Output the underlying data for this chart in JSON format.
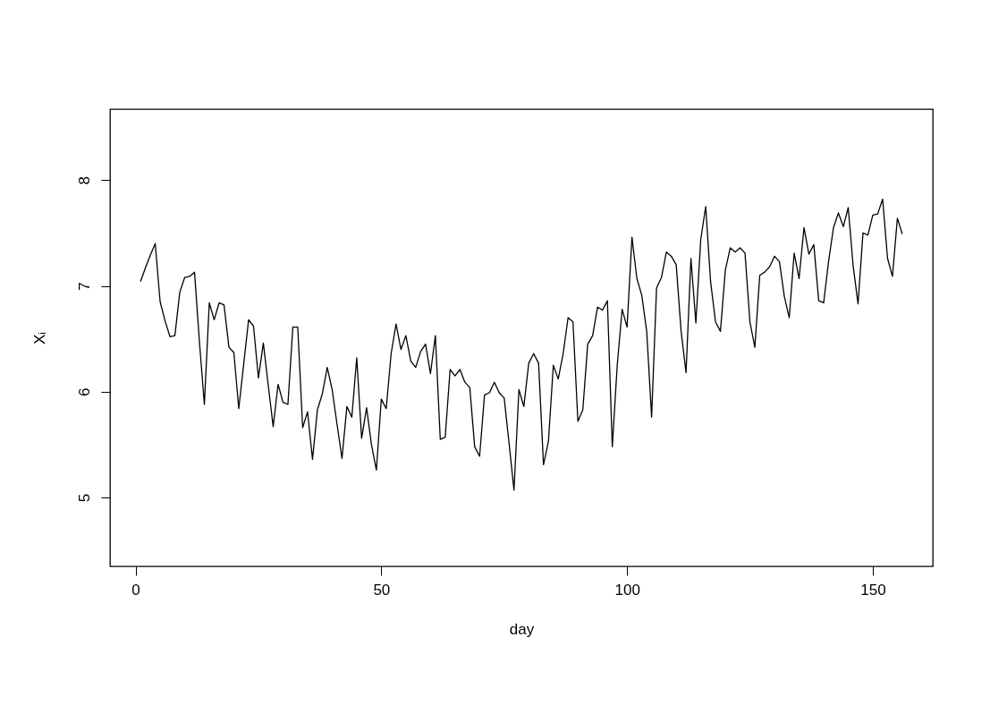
{
  "chart_data": {
    "type": "line",
    "xlabel": "day",
    "ylabel": "Xᵢ",
    "xlim": [
      -5.2,
      162.2
    ],
    "xticks": [
      0,
      50,
      100,
      150
    ],
    "ylim": [
      4.35,
      8.67
    ],
    "yticks": [
      5,
      6,
      7,
      8
    ],
    "grid": false,
    "x": [
      1,
      2,
      3,
      4,
      5,
      6,
      7,
      8,
      9,
      10,
      11,
      12,
      13,
      14,
      15,
      16,
      17,
      18,
      19,
      20,
      21,
      22,
      23,
      24,
      25,
      26,
      27,
      28,
      29,
      30,
      31,
      32,
      33,
      34,
      35,
      36,
      37,
      38,
      39,
      40,
      41,
      42,
      43,
      44,
      45,
      46,
      47,
      48,
      49,
      50,
      51,
      52,
      53,
      54,
      55,
      56,
      57,
      58,
      59,
      60,
      61,
      62,
      63,
      64,
      65,
      66,
      67,
      68,
      69,
      70,
      71,
      72,
      73,
      74,
      75,
      76,
      77,
      78,
      79,
      80,
      81,
      82,
      83,
      84,
      85,
      86,
      87,
      88,
      89,
      90,
      91,
      92,
      93,
      94,
      95,
      96,
      97,
      98,
      99,
      100,
      101,
      102,
      103,
      104,
      105,
      106,
      107,
      108,
      109,
      110,
      111,
      112,
      113,
      114,
      115,
      116,
      117,
      118,
      119,
      120,
      121,
      122,
      123,
      124,
      125,
      126,
      127,
      128,
      129,
      130,
      131,
      132,
      133,
      134,
      135,
      136,
      137,
      138,
      139,
      140,
      141,
      142,
      143,
      144,
      145,
      146,
      147,
      148,
      149,
      150,
      151,
      152,
      153,
      154,
      155,
      156
    ],
    "series": [
      {
        "color": "#000000",
        "values": [
          7.04,
          7.17,
          7.29,
          7.4,
          6.85,
          6.67,
          6.52,
          6.53,
          6.94,
          7.08,
          7.09,
          7.13,
          6.47,
          5.88,
          6.84,
          6.68,
          6.84,
          6.82,
          6.42,
          6.37,
          5.84,
          6.26,
          6.68,
          6.62,
          6.13,
          6.46,
          6.06,
          5.67,
          6.07,
          5.9,
          5.88,
          6.61,
          6.61,
          5.66,
          5.81,
          5.36,
          5.83,
          5.98,
          6.23,
          6.02,
          5.69,
          5.37,
          5.86,
          5.76,
          6.32,
          5.56,
          5.85,
          5.5,
          5.26,
          5.93,
          5.84,
          6.36,
          6.64,
          6.4,
          6.53,
          6.29,
          6.23,
          6.38,
          6.45,
          6.17,
          6.53,
          5.55,
          5.57,
          6.21,
          6.15,
          6.21,
          6.09,
          6.04,
          5.48,
          5.39,
          5.97,
          5.99,
          6.09,
          5.99,
          5.94,
          5.51,
          5.07,
          6.02,
          5.86,
          6.27,
          6.36,
          6.27,
          5.31,
          5.53,
          6.25,
          6.12,
          6.36,
          6.7,
          6.66,
          5.72,
          5.83,
          6.45,
          6.53,
          6.8,
          6.77,
          6.86,
          5.48,
          6.25,
          6.78,
          6.61,
          7.46,
          7.07,
          6.91,
          6.57,
          5.76,
          6.98,
          7.08,
          7.32,
          7.28,
          7.2,
          6.57,
          6.18,
          7.26,
          6.65,
          7.44,
          7.75,
          7.04,
          6.66,
          6.57,
          7.15,
          7.36,
          7.32,
          7.36,
          7.31,
          6.66,
          6.42,
          7.1,
          7.13,
          7.18,
          7.28,
          7.23,
          6.9,
          6.7,
          7.31,
          7.07,
          7.55,
          7.3,
          7.39,
          6.86,
          6.84,
          7.23,
          7.55,
          7.69,
          7.56,
          7.74,
          7.19,
          6.83,
          7.5,
          7.48,
          7.67,
          7.68,
          7.82,
          7.26,
          7.09,
          7.64,
          7.49
        ]
      }
    ]
  }
}
